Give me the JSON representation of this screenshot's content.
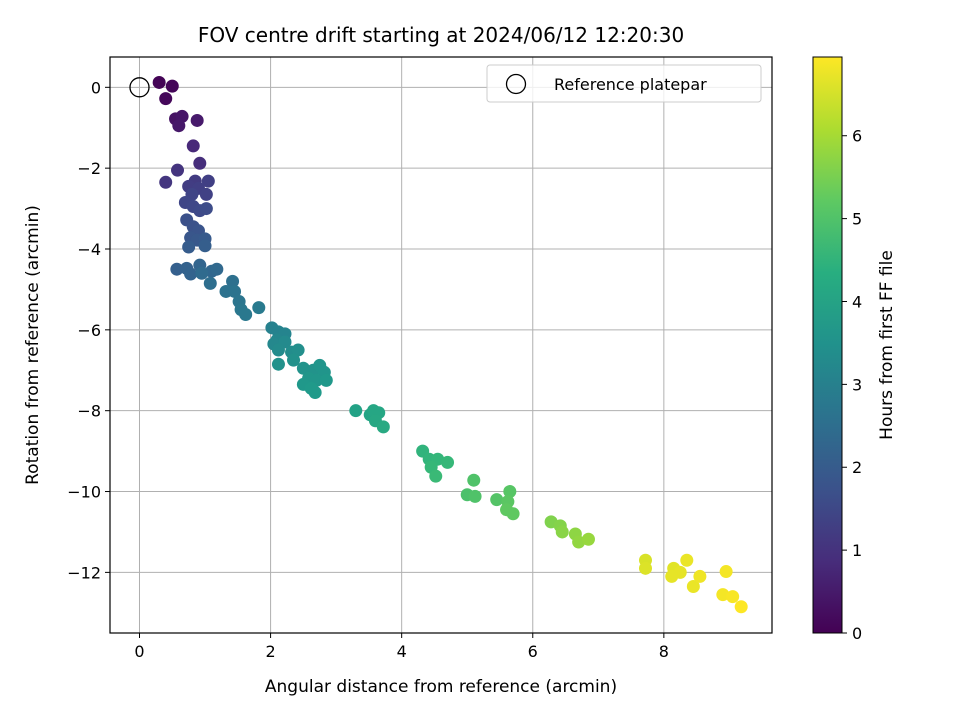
{
  "chart_data": {
    "type": "scatter",
    "title": "FOV centre drift starting at 2024/06/12 12:20:30",
    "xlabel": "Angular distance from reference (arcmin)",
    "ylabel": "Rotation from reference (arcmin)",
    "xlim": [
      -0.45,
      9.65
    ],
    "ylim": [
      -13.5,
      0.75
    ],
    "xticks": [
      0,
      2,
      4,
      6,
      8
    ],
    "yticks": [
      0,
      -2,
      -4,
      -6,
      -8,
      -10,
      -12
    ],
    "xtick_labels": [
      "0",
      "2",
      "4",
      "6",
      "8"
    ],
    "ytick_labels": [
      "0",
      "−2",
      "−4",
      "−6",
      "−8",
      "−10",
      "−12"
    ],
    "grid": true,
    "legend": {
      "placement": "top-right",
      "entries": [
        "Reference platepar"
      ]
    },
    "reference": {
      "x": 0,
      "y": 0
    },
    "colorbar": {
      "label": "Hours from first FF file",
      "range": [
        0,
        6.95
      ],
      "ticks": [
        0,
        1,
        2,
        3,
        4,
        5,
        6
      ],
      "colormap": "viridis"
    },
    "points": [
      [
        0.3,
        0.12,
        0.05
      ],
      [
        0.5,
        0.03,
        0.08
      ],
      [
        0.4,
        -0.28,
        0.12
      ],
      [
        0.55,
        -0.78,
        0.35
      ],
      [
        0.65,
        -0.72,
        0.4
      ],
      [
        0.6,
        -0.95,
        0.45
      ],
      [
        0.88,
        -0.82,
        0.5
      ],
      [
        0.82,
        -1.45,
        0.8
      ],
      [
        0.92,
        -1.88,
        0.9
      ],
      [
        0.58,
        -2.05,
        1.05
      ],
      [
        0.4,
        -2.35,
        1.1
      ],
      [
        0.85,
        -2.32,
        1.2
      ],
      [
        0.75,
        -2.45,
        1.25
      ],
      [
        0.9,
        -2.5,
        1.3
      ],
      [
        1.05,
        -2.32,
        1.3
      ],
      [
        1.02,
        -2.65,
        1.35
      ],
      [
        0.8,
        -2.65,
        1.4
      ],
      [
        0.7,
        -2.85,
        1.45
      ],
      [
        0.82,
        -2.95,
        1.5
      ],
      [
        0.92,
        -3.05,
        1.55
      ],
      [
        1.02,
        -3.0,
        1.6
      ],
      [
        0.72,
        -3.28,
        1.7
      ],
      [
        0.82,
        -3.45,
        1.75
      ],
      [
        0.9,
        -3.55,
        1.8
      ],
      [
        0.78,
        -3.72,
        1.85
      ],
      [
        0.88,
        -3.78,
        1.9
      ],
      [
        1.0,
        -3.75,
        1.95
      ],
      [
        0.75,
        -3.95,
        2.0
      ],
      [
        1.0,
        -3.92,
        2.05
      ],
      [
        0.57,
        -4.5,
        2.1
      ],
      [
        0.72,
        -4.48,
        2.15
      ],
      [
        0.78,
        -4.62,
        2.2
      ],
      [
        0.92,
        -4.4,
        2.25
      ],
      [
        1.1,
        -4.55,
        2.3
      ],
      [
        1.18,
        -4.5,
        2.35
      ],
      [
        0.95,
        -4.6,
        2.4
      ],
      [
        1.08,
        -4.85,
        2.5
      ],
      [
        1.42,
        -4.8,
        2.55
      ],
      [
        1.32,
        -5.05,
        2.6
      ],
      [
        1.45,
        -5.05,
        2.65
      ],
      [
        1.52,
        -5.3,
        2.7
      ],
      [
        1.55,
        -5.5,
        2.75
      ],
      [
        1.62,
        -5.62,
        2.8
      ],
      [
        1.82,
        -5.45,
        2.85
      ],
      [
        2.02,
        -5.95,
        3.05
      ],
      [
        2.12,
        -6.05,
        3.1
      ],
      [
        2.22,
        -6.1,
        3.15
      ],
      [
        2.1,
        -6.25,
        3.2
      ],
      [
        2.05,
        -6.35,
        3.25
      ],
      [
        2.22,
        -6.3,
        3.3
      ],
      [
        2.12,
        -6.5,
        3.35
      ],
      [
        2.32,
        -6.55,
        3.4
      ],
      [
        2.42,
        -6.5,
        3.45
      ],
      [
        2.35,
        -6.75,
        3.5
      ],
      [
        2.12,
        -6.85,
        3.5
      ],
      [
        2.5,
        -6.95,
        3.55
      ],
      [
        2.65,
        -7.0,
        3.55
      ],
      [
        2.75,
        -6.88,
        3.6
      ],
      [
        2.82,
        -7.05,
        3.6
      ],
      [
        2.58,
        -7.2,
        3.65
      ],
      [
        2.7,
        -7.25,
        3.65
      ],
      [
        2.85,
        -7.25,
        3.7
      ],
      [
        2.5,
        -7.35,
        3.7
      ],
      [
        2.62,
        -7.45,
        3.75
      ],
      [
        2.68,
        -7.55,
        3.75
      ],
      [
        3.3,
        -8.0,
        4.0
      ],
      [
        3.52,
        -8.1,
        4.05
      ],
      [
        3.57,
        -8.0,
        4.1
      ],
      [
        3.65,
        -8.05,
        4.1
      ],
      [
        3.6,
        -8.25,
        4.15
      ],
      [
        3.72,
        -8.4,
        4.2
      ],
      [
        4.32,
        -9.0,
        4.5
      ],
      [
        4.42,
        -9.2,
        4.55
      ],
      [
        4.55,
        -9.2,
        4.6
      ],
      [
        4.7,
        -9.28,
        4.65
      ],
      [
        4.45,
        -9.4,
        4.65
      ],
      [
        4.52,
        -9.62,
        4.7
      ],
      [
        5.0,
        -10.08,
        4.95
      ],
      [
        5.12,
        -10.12,
        5.0
      ],
      [
        5.1,
        -9.72,
        5.0
      ],
      [
        5.45,
        -10.2,
        5.05
      ],
      [
        5.65,
        -10.0,
        5.1
      ],
      [
        5.62,
        -10.25,
        5.15
      ],
      [
        5.6,
        -10.45,
        5.2
      ],
      [
        5.7,
        -10.55,
        5.2
      ],
      [
        6.28,
        -10.75,
        5.6
      ],
      [
        6.42,
        -10.85,
        5.65
      ],
      [
        6.45,
        -11.0,
        5.7
      ],
      [
        6.65,
        -11.05,
        5.75
      ],
      [
        6.7,
        -11.25,
        5.8
      ],
      [
        6.85,
        -11.18,
        5.85
      ],
      [
        7.72,
        -11.7,
        6.55
      ],
      [
        7.72,
        -11.9,
        6.6
      ],
      [
        8.15,
        -11.9,
        6.65
      ],
      [
        8.25,
        -12.0,
        6.7
      ],
      [
        8.12,
        -12.1,
        6.7
      ],
      [
        8.35,
        -11.7,
        6.75
      ],
      [
        8.45,
        -12.35,
        6.75
      ],
      [
        8.55,
        -12.1,
        6.8
      ],
      [
        8.9,
        -12.55,
        6.85
      ],
      [
        8.95,
        -11.98,
        6.85
      ],
      [
        9.05,
        -12.6,
        6.9
      ],
      [
        9.18,
        -12.85,
        6.95
      ]
    ]
  }
}
